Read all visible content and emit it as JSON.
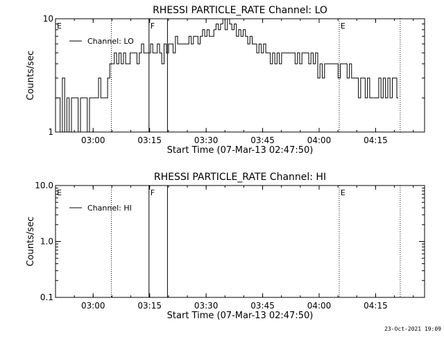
{
  "footer": {
    "timestamp": "23-Oct-2021 19:09"
  },
  "chart_data": [
    {
      "type": "line",
      "title": "RHESSI PARTICLE_RATE Channel: LO",
      "xlabel": "Start Time (07-Mar-13 02:47:50)",
      "ylabel": "Counts/sec",
      "yscale": "log",
      "ylim": [
        1,
        10
      ],
      "xlim_minutes": [
        2.17,
        100.17
      ],
      "xticks": [
        {
          "minutes": 12.17,
          "label": "03:00"
        },
        {
          "minutes": 27.17,
          "label": "03:15"
        },
        {
          "minutes": 42.17,
          "label": "03:30"
        },
        {
          "minutes": 57.17,
          "label": "03:45"
        },
        {
          "minutes": 72.17,
          "label": "04:00"
        },
        {
          "minutes": 87.17,
          "label": "04:15"
        }
      ],
      "yticks": [
        {
          "value": 1,
          "label": "1"
        },
        {
          "value": 10,
          "label": "10"
        }
      ],
      "legend": {
        "label": "Channel: LO",
        "position": "top-left"
      },
      "flags": [
        {
          "minutes": 2.17,
          "label": "E",
          "style": "dotted",
          "draw_line": false
        },
        {
          "minutes": 17.0,
          "label": "",
          "style": "dotted",
          "draw_line": true
        },
        {
          "minutes": 27.0,
          "label": "F",
          "style": "solid",
          "draw_line": true
        },
        {
          "minutes": 31.9,
          "label": "",
          "style": "solid",
          "draw_line": true
        },
        {
          "minutes": 77.5,
          "label": "E",
          "style": "dotted",
          "draw_line": true
        },
        {
          "minutes": 93.7,
          "label": "",
          "style": "dotted",
          "draw_line": true
        }
      ],
      "series": [
        {
          "x_minutes": [
            2.17,
            2.8,
            3.4,
            4.0,
            4.6,
            5.2,
            5.8,
            6.4,
            7.0,
            7.6,
            8.2,
            8.8,
            9.4,
            10.0,
            10.6,
            11.2,
            11.8,
            12.4,
            13.0,
            13.6,
            14.2,
            14.8,
            15.4,
            16.0,
            16.6,
            17.2,
            17.8,
            18.4,
            19.0,
            19.6,
            20.2,
            20.8,
            21.4,
            22.0,
            22.6,
            23.2,
            23.8,
            24.4,
            25.0,
            25.6,
            26.2,
            26.8,
            27.4,
            28.0,
            28.6,
            29.2,
            29.8,
            30.4,
            31.0,
            31.6,
            32.2,
            32.8,
            33.4,
            34.0,
            34.6,
            35.2,
            35.8,
            36.4,
            37.0,
            37.6,
            38.2,
            38.8,
            39.4,
            40.0,
            40.6,
            41.2,
            41.8,
            42.4,
            43.0,
            43.6,
            44.2,
            44.8,
            45.4,
            46.0,
            46.6,
            47.2,
            47.8,
            48.4,
            49.0,
            49.6,
            50.2,
            50.8,
            51.4,
            52.0,
            52.6,
            53.2,
            53.8,
            54.4,
            55.0,
            55.6,
            56.2,
            56.8,
            57.4,
            58.0,
            58.6,
            59.2,
            59.8,
            60.4,
            61.0,
            61.6,
            62.2,
            62.8,
            63.4,
            64.0,
            64.6,
            65.2,
            65.8,
            66.4,
            67.0,
            67.6,
            68.2,
            68.8,
            69.4,
            70.0,
            70.6,
            71.2,
            71.8,
            72.4,
            73.0,
            73.6,
            74.2,
            74.8,
            75.4,
            76.0,
            76.6,
            77.2,
            77.8,
            78.4,
            79.0,
            79.6,
            80.2,
            80.8,
            81.4,
            82.0,
            82.6,
            83.2,
            83.8,
            84.4,
            85.0,
            85.6,
            86.2,
            86.8,
            87.4,
            88.0,
            88.6,
            89.2,
            89.8,
            90.4,
            91.0,
            91.6,
            92.2,
            92.8
          ],
          "values": [
            2,
            2,
            1,
            3,
            1,
            2,
            1,
            2,
            2,
            2,
            1,
            2,
            2,
            2,
            1,
            2,
            2,
            2,
            2,
            3,
            2,
            2,
            2,
            3,
            4,
            4,
            5,
            4,
            5,
            4,
            5,
            4,
            4,
            5,
            5,
            5,
            4,
            5,
            6,
            5,
            5,
            5,
            6,
            5,
            5,
            6,
            5,
            4,
            6,
            5,
            6,
            6,
            5,
            7,
            6,
            6,
            6,
            6,
            6,
            7,
            6,
            7,
            7,
            6,
            7,
            8,
            7,
            8,
            7,
            7,
            8,
            9,
            8,
            9,
            10,
            8,
            10,
            9,
            8,
            9,
            7,
            8,
            7,
            8,
            7,
            6,
            7,
            6,
            6,
            5,
            6,
            5,
            6,
            5,
            5,
            4,
            5,
            4,
            5,
            4,
            5,
            5,
            5,
            5,
            5,
            5,
            4,
            5,
            4,
            5,
            5,
            5,
            4,
            5,
            4,
            5,
            3,
            4,
            3,
            4,
            4,
            4,
            4,
            4,
            4,
            3,
            4,
            4,
            4,
            3,
            4,
            3,
            3,
            3,
            2,
            3,
            3,
            2,
            3,
            2,
            2,
            2,
            2,
            3,
            2,
            3,
            2,
            3,
            2,
            3,
            3,
            2
          ]
        }
      ]
    },
    {
      "type": "line",
      "title": "RHESSI PARTICLE_RATE Channel: HI",
      "xlabel": "Start Time (07-Mar-13 02:47:50)",
      "ylabel": "Counts/sec",
      "yscale": "log",
      "ylim": [
        0.1,
        10
      ],
      "xlim_minutes": [
        2.17,
        100.17
      ],
      "xticks": [
        {
          "minutes": 12.17,
          "label": "03:00"
        },
        {
          "minutes": 27.17,
          "label": "03:15"
        },
        {
          "minutes": 42.17,
          "label": "03:30"
        },
        {
          "minutes": 57.17,
          "label": "03:45"
        },
        {
          "minutes": 72.17,
          "label": "04:00"
        },
        {
          "minutes": 87.17,
          "label": "04:15"
        }
      ],
      "yticks": [
        {
          "value": 0.1,
          "label": "0.1"
        },
        {
          "value": 1,
          "label": "1.0"
        },
        {
          "value": 10,
          "label": "10.0"
        }
      ],
      "legend": {
        "label": "Channel: HI",
        "position": "top-left"
      },
      "flags": [
        {
          "minutes": 2.17,
          "label": "E",
          "style": "dotted",
          "draw_line": false
        },
        {
          "minutes": 17.0,
          "label": "",
          "style": "dotted",
          "draw_line": true
        },
        {
          "minutes": 27.0,
          "label": "F",
          "style": "solid",
          "draw_line": true
        },
        {
          "minutes": 31.9,
          "label": "",
          "style": "solid",
          "draw_line": true
        },
        {
          "minutes": 77.5,
          "label": "E",
          "style": "dotted",
          "draw_line": true
        },
        {
          "minutes": 93.7,
          "label": "",
          "style": "dotted",
          "draw_line": true
        }
      ],
      "series": [
        {
          "x_minutes": [],
          "values": []
        }
      ]
    }
  ]
}
